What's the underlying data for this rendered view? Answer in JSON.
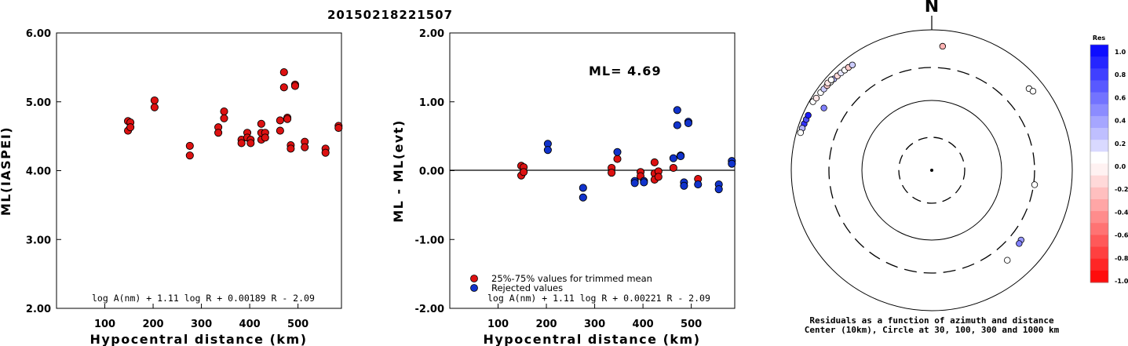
{
  "title": "20150218221507",
  "colors": {
    "trimmed": "#dd1111",
    "rejected": "#1133cc",
    "axis": "#000000"
  },
  "chart_data": [
    {
      "type": "scatter",
      "name_label": "",
      "xlabel": "Hypocentral distance (km)",
      "ylabel": "ML(IASPEI)",
      "xlim": [
        0,
        590
      ],
      "ylim": [
        2.0,
        6.0
      ],
      "xticks": [
        "100",
        "200",
        "300",
        "400",
        "500"
      ],
      "yticks": [
        "2.00",
        "3.00",
        "4.00",
        "5.00",
        "6.00"
      ],
      "formula": "log A(nm) + 1.11 log R + 0.00189 R - 2.09",
      "points": [
        {
          "x": 148,
          "y": 4.72
        },
        {
          "x": 148,
          "y": 4.58
        },
        {
          "x": 153,
          "y": 4.7
        },
        {
          "x": 153,
          "y": 4.63
        },
        {
          "x": 203,
          "y": 5.02
        },
        {
          "x": 203,
          "y": 4.92
        },
        {
          "x": 276,
          "y": 4.36
        },
        {
          "x": 276,
          "y": 4.22
        },
        {
          "x": 335,
          "y": 4.63
        },
        {
          "x": 335,
          "y": 4.55
        },
        {
          "x": 347,
          "y": 4.86
        },
        {
          "x": 347,
          "y": 4.76
        },
        {
          "x": 383,
          "y": 4.45
        },
        {
          "x": 383,
          "y": 4.4
        },
        {
          "x": 395,
          "y": 4.55
        },
        {
          "x": 395,
          "y": 4.48
        },
        {
          "x": 402,
          "y": 4.45
        },
        {
          "x": 402,
          "y": 4.4
        },
        {
          "x": 424,
          "y": 4.68
        },
        {
          "x": 424,
          "y": 4.55
        },
        {
          "x": 424,
          "y": 4.45
        },
        {
          "x": 432,
          "y": 4.55
        },
        {
          "x": 432,
          "y": 4.48
        },
        {
          "x": 463,
          "y": 4.73
        },
        {
          "x": 463,
          "y": 4.58
        },
        {
          "x": 471,
          "y": 5.43
        },
        {
          "x": 471,
          "y": 5.21
        },
        {
          "x": 478,
          "y": 4.77
        },
        {
          "x": 478,
          "y": 4.75
        },
        {
          "x": 485,
          "y": 4.37
        },
        {
          "x": 485,
          "y": 4.32
        },
        {
          "x": 494,
          "y": 5.25
        },
        {
          "x": 494,
          "y": 5.23
        },
        {
          "x": 514,
          "y": 4.42
        },
        {
          "x": 514,
          "y": 4.34
        },
        {
          "x": 557,
          "y": 4.32
        },
        {
          "x": 557,
          "y": 4.26
        },
        {
          "x": 584,
          "y": 4.65
        },
        {
          "x": 584,
          "y": 4.62
        }
      ]
    },
    {
      "type": "scatter",
      "xlabel": "Hypocentral distance (km)",
      "ylabel": "ML - ML(evt)",
      "xlim": [
        0,
        590
      ],
      "ylim": [
        -2.0,
        2.0
      ],
      "xticks": [
        "100",
        "200",
        "300",
        "400",
        "500"
      ],
      "yticks": [
        "-2.00",
        "-1.00",
        "0.00",
        "1.00",
        "2.00"
      ],
      "ml_label": "ML= 4.69",
      "formula": "log A(nm) + 1.11 log R + 0.00221 R - 2.09",
      "legend": {
        "trimmed": "25%-75% values for trimmed mean",
        "rejected": "Rejected values"
      },
      "trimmed": [
        {
          "x": 148,
          "y": 0.07
        },
        {
          "x": 148,
          "y": -0.07
        },
        {
          "x": 153,
          "y": 0.05
        },
        {
          "x": 153,
          "y": -0.02
        },
        {
          "x": 335,
          "y": 0.04
        },
        {
          "x": 335,
          "y": -0.03
        },
        {
          "x": 347,
          "y": 0.17
        },
        {
          "x": 395,
          "y": -0.02
        },
        {
          "x": 395,
          "y": -0.08
        },
        {
          "x": 424,
          "y": 0.12
        },
        {
          "x": 424,
          "y": -0.04
        },
        {
          "x": 424,
          "y": -0.13
        },
        {
          "x": 432,
          "y": -0.01
        },
        {
          "x": 432,
          "y": -0.09
        },
        {
          "x": 463,
          "y": 0.04
        },
        {
          "x": 514,
          "y": -0.12
        }
      ],
      "rejected": [
        {
          "x": 203,
          "y": 0.39
        },
        {
          "x": 203,
          "y": 0.3
        },
        {
          "x": 276,
          "y": -0.25
        },
        {
          "x": 276,
          "y": -0.39
        },
        {
          "x": 347,
          "y": 0.27
        },
        {
          "x": 383,
          "y": -0.15
        },
        {
          "x": 383,
          "y": -0.18
        },
        {
          "x": 402,
          "y": -0.15
        },
        {
          "x": 402,
          "y": -0.17
        },
        {
          "x": 463,
          "y": 0.18
        },
        {
          "x": 471,
          "y": 0.88
        },
        {
          "x": 471,
          "y": 0.66
        },
        {
          "x": 478,
          "y": 0.22
        },
        {
          "x": 478,
          "y": 0.21
        },
        {
          "x": 485,
          "y": -0.17
        },
        {
          "x": 485,
          "y": -0.22
        },
        {
          "x": 494,
          "y": 0.71
        },
        {
          "x": 494,
          "y": 0.69
        },
        {
          "x": 514,
          "y": -0.2
        },
        {
          "x": 557,
          "y": -0.2
        },
        {
          "x": 557,
          "y": -0.27
        },
        {
          "x": 584,
          "y": 0.14
        },
        {
          "x": 584,
          "y": 0.1
        }
      ]
    },
    {
      "type": "scatter",
      "subtype": "polar",
      "north_label": "N",
      "colorbar_title": "Res",
      "colorbar_labels": [
        "1.0",
        "0.8",
        "0.6",
        "0.4",
        "0.2",
        "0.0",
        "-0.2",
        "-0.4",
        "-0.6",
        "-0.8",
        "-1.0"
      ],
      "caption_line1": "Residuals as a function of azimuth and distance",
      "caption_line2": "Center (10km), Circle at 30, 100, 300 and 1000 km",
      "points": [
        {
          "az": 5,
          "dist": 600,
          "res": -0.3
        },
        {
          "az": 300,
          "dist": 900,
          "res": 0.0
        },
        {
          "az": 302,
          "dist": 870,
          "res": -0.1
        },
        {
          "az": 305,
          "dist": 855,
          "res": 0.0
        },
        {
          "az": 307,
          "dist": 840,
          "res": 0.2
        },
        {
          "az": 309,
          "dist": 830,
          "res": -0.2
        },
        {
          "az": 311,
          "dist": 820,
          "res": 0.0
        },
        {
          "az": 313,
          "dist": 810,
          "res": 0.3
        },
        {
          "az": 315,
          "dist": 800,
          "res": -0.15
        },
        {
          "az": 317,
          "dist": 790,
          "res": 0.1
        },
        {
          "az": 319,
          "dist": 780,
          "res": 0.0
        },
        {
          "az": 321,
          "dist": 770,
          "res": -0.2
        },
        {
          "az": 323,
          "dist": 760,
          "res": 0.2
        },
        {
          "az": 310,
          "dist": 860,
          "res": -0.1
        },
        {
          "az": 312,
          "dist": 845,
          "res": 0.0
        },
        {
          "az": 290,
          "dist": 860,
          "res": 0.8
        },
        {
          "az": 292,
          "dist": 850,
          "res": 0.7
        },
        {
          "az": 294,
          "dist": 845,
          "res": 0.9
        },
        {
          "az": 288,
          "dist": 870,
          "res": 0.3
        },
        {
          "az": 286,
          "dist": 880,
          "res": 0.0
        },
        {
          "az": 300,
          "dist": 600,
          "res": 0.5
        },
        {
          "az": 50,
          "dist": 650,
          "res": 0.0
        },
        {
          "az": 52,
          "dist": 680,
          "res": 0.0
        },
        {
          "az": 98,
          "dist": 310,
          "res": 0.0
        },
        {
          "az": 128,
          "dist": 420,
          "res": 0.4
        },
        {
          "az": 130,
          "dist": 430,
          "res": 0.5
        },
        {
          "az": 140,
          "dist": 480,
          "res": 0.0
        }
      ]
    }
  ]
}
